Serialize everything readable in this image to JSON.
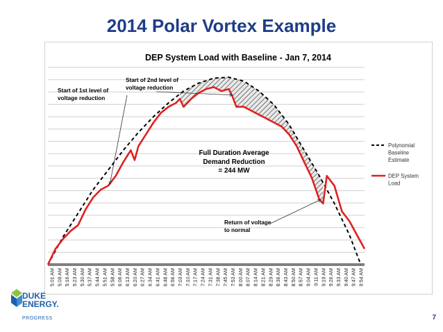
{
  "slide": {
    "title": "2014 Polar Vortex Example",
    "page_number": "7",
    "logo": {
      "line1": "DUKE",
      "line2": "ENERGY.",
      "line3": "PROGRESS"
    }
  },
  "colors": {
    "title": "#1f3c88",
    "system_load": "#e02020",
    "baseline": "#000000",
    "hatch": "#555555",
    "logo": "#1f5fa8"
  },
  "chart_data": {
    "type": "line",
    "title": "DEP System Load with Baseline - Jan 7, 2014",
    "x_tick_labels": [
      "5:01 AM",
      "5:09 AM",
      "5:16 AM",
      "5:23 AM",
      "5:30 AM",
      "5:37 AM",
      "5:44 AM",
      "5:51 AM",
      "5:58 AM",
      "6:06 AM",
      "6:13 AM",
      "6:20 AM",
      "6:27 AM",
      "6:34 AM",
      "6:41 AM",
      "6:48 AM",
      "6:56 AM",
      "7:03 AM",
      "7:10 AM",
      "7:17 AM",
      "7:24 AM",
      "7:31 AM",
      "7:38 AM",
      "7:45 AM",
      "7:53 AM",
      "8:00 AM",
      "8:07 AM",
      "8:14 AM",
      "8:21 AM",
      "8:29 AM",
      "8:36 AM",
      "8:43 AM",
      "8:50 AM",
      "8:57 AM",
      "9:04 AM",
      "9:11 AM",
      "9:19 AM",
      "9:26 AM",
      "9:33 AM",
      "9:40 AM",
      "9:47 AM",
      "9:54 AM"
    ],
    "x_range": [
      0,
      42
    ],
    "y_range": [
      0,
      100
    ],
    "y_tick_labels_shown": false,
    "gridlines": 16,
    "grid": true,
    "legend_position": "right",
    "series": [
      {
        "name": "Polynomial Baseline Estimate",
        "style": "dashed",
        "x": [
          0,
          2,
          4,
          6,
          8,
          10,
          12,
          14,
          16,
          18,
          20,
          22,
          24,
          26,
          28,
          30,
          32,
          34,
          36,
          38,
          40,
          41.5
        ],
        "y": [
          0,
          14,
          26,
          38,
          48,
          58,
          67,
          75,
          82,
          88,
          92,
          94.5,
          95,
          93,
          88,
          81,
          71,
          58,
          45,
          31,
          15,
          0
        ]
      },
      {
        "name": "DEP System Load",
        "style": "solid",
        "x": [
          0,
          1,
          2,
          3,
          4,
          5,
          6,
          7,
          8,
          9,
          10,
          11,
          11.5,
          12,
          13,
          14,
          15,
          16,
          17,
          17.5,
          18,
          19,
          20,
          21,
          22,
          23,
          24,
          24.5,
          25,
          26,
          27,
          28,
          29,
          30,
          31,
          32,
          33,
          34,
          35,
          36,
          36.5,
          37,
          38,
          39,
          40,
          41,
          42
        ],
        "y": [
          0,
          8,
          13,
          17,
          20,
          28,
          34,
          38,
          40,
          45,
          52,
          58,
          53,
          60,
          66,
          72,
          77,
          80,
          82,
          84,
          80,
          84,
          87,
          89,
          90,
          88,
          89,
          85,
          80,
          80,
          78,
          76,
          74,
          72,
          70,
          66,
          60,
          52,
          44,
          33,
          31,
          45,
          40,
          27,
          22,
          15,
          8
        ],
        "annotation": "Full Duration Average\nDemand Reduction\n= 244 MW"
      }
    ],
    "shaded_region": {
      "between": [
        "Polynomial Baseline Estimate",
        "DEP System Load"
      ],
      "x_range": [
        17.5,
        36.5
      ],
      "pattern": "diagonal hatch"
    },
    "annotations": [
      {
        "text": "Start of 1st level of voltage reduction",
        "at_x": 8.2,
        "at_y": 40.5,
        "position": "upper-left"
      },
      {
        "text": "Start of 2nd level of voltage reduction",
        "at_x": 24.5,
        "at_y": 86,
        "position": "upper-center"
      },
      {
        "text": "Full Duration Average Demand Reduction = 244 MW",
        "at_x": 24,
        "at_y": 60,
        "position": "center"
      },
      {
        "text": "Return of voltage to normal",
        "at_x": 36.2,
        "at_y": 33,
        "position": "lower-center"
      }
    ]
  }
}
